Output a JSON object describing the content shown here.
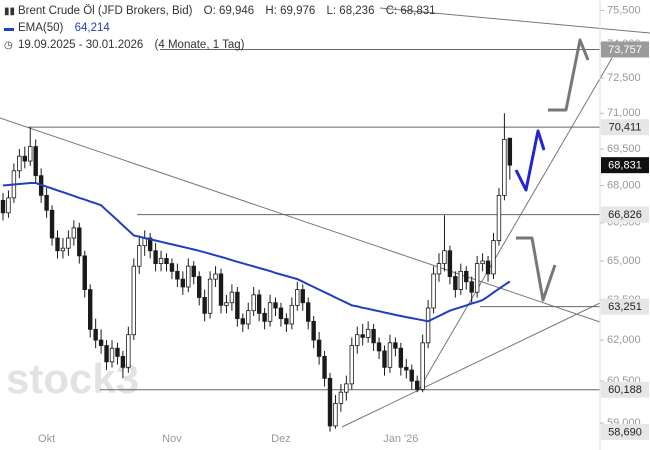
{
  "chart_data": {
    "type": "candlestick",
    "title": "Brent Crude Öl (JFD Brokers, Bid)",
    "quote": [
      {
        "name": "O:",
        "text": "69,946"
      },
      {
        "name": "H:",
        "text": "69,976"
      },
      {
        "name": "L:",
        "text": "68,236"
      },
      {
        "name": "C:",
        "text": "68,831"
      }
    ],
    "date_range": "19.09.2025 - 30.01.2026",
    "period": "(4 Monate, 1 Tag)",
    "watermark": "stock3",
    "log_scale": true,
    "up_color": "#ffffff",
    "down_color": "#1a1a1a",
    "ylim": [
      58.06,
      75.97
    ],
    "yticks": [
      {
        "value": 75.5,
        "label": "75,500"
      },
      {
        "value": 74.0,
        "label": "74,000"
      },
      {
        "value": 72.5,
        "label": "72,500"
      },
      {
        "value": 71.0,
        "label": "71,000"
      },
      {
        "value": 69.5,
        "label": "69,500"
      },
      {
        "value": 68.0,
        "label": "68,000"
      },
      {
        "value": 66.5,
        "label": "66,500"
      },
      {
        "value": 65.0,
        "label": "65,000"
      },
      {
        "value": 63.5,
        "label": "63,500"
      },
      {
        "value": 62.0,
        "label": "62,000"
      },
      {
        "value": 60.5,
        "label": "60,500"
      },
      {
        "value": 59.0,
        "label": "59,000"
      }
    ],
    "levels": [
      {
        "value": 73.757,
        "label": "73,757",
        "bg": "#9a9a9a",
        "fg": "#ffffff"
      },
      {
        "value": 70.411,
        "label": "70,411",
        "bg": "#e6e6e6",
        "fg": "#222222"
      },
      {
        "value": 68.831,
        "label": "68,831",
        "bg": "#111111",
        "fg": "#ffffff"
      },
      {
        "value": 66.826,
        "label": "66,826",
        "bg": "#e6e6e6",
        "fg": "#222222"
      },
      {
        "value": 63.251,
        "label": "63,251",
        "bg": "#e6e6e6",
        "fg": "#222222"
      },
      {
        "value": 60.188,
        "label": "60,188",
        "bg": "#e6e6e6",
        "fg": "#222222"
      },
      {
        "value": 58.69,
        "label": "58,690",
        "bg": "#e6e6e6",
        "fg": "#222222"
      }
    ],
    "categories": [
      null,
      null,
      null,
      null,
      null,
      null,
      null,
      null,
      "Okt",
      null,
      null,
      null,
      null,
      null,
      null,
      null,
      null,
      null,
      null,
      null,
      null,
      null,
      null,
      null,
      null,
      null,
      null,
      null,
      null,
      null,
      null,
      "Nov",
      null,
      null,
      null,
      null,
      null,
      null,
      null,
      null,
      null,
      null,
      null,
      null,
      null,
      null,
      null,
      null,
      null,
      null,
      null,
      "Dez",
      null,
      null,
      null,
      null,
      null,
      null,
      null,
      null,
      null,
      null,
      null,
      null,
      null,
      null,
      null,
      null,
      null,
      null,
      null,
      null,
      null,
      "Jan '26",
      null,
      null,
      null,
      null,
      null,
      null,
      null,
      null,
      null,
      null,
      null,
      null,
      null,
      null,
      null,
      null,
      null,
      null,
      null,
      null
    ],
    "open": [
      67.4,
      66.9,
      67.5,
      68.6,
      69.2,
      69.0,
      69.6,
      68.4,
      67.6,
      67.0,
      65.9,
      65.4,
      65.5,
      65.9,
      66.3,
      65.2,
      63.9,
      62.4,
      62.0,
      61.8,
      61.2,
      61.7,
      61.4,
      61.0,
      62.2,
      64.8,
      65.6,
      65.9,
      65.4,
      64.9,
      65.1,
      64.9,
      64.6,
      64.3,
      64.0,
      64.8,
      64.4,
      63.6,
      63.0,
      64.3,
      64.5,
      63.3,
      63.4,
      63.8,
      62.8,
      62.6,
      63.1,
      63.7,
      63.0,
      62.7,
      63.4,
      63.2,
      62.8,
      62.6,
      63.3,
      63.9,
      63.4,
      62.7,
      62.0,
      61.4,
      60.6,
      58.9,
      59.7,
      60.1,
      60.4,
      61.8,
      62.2,
      62.1,
      62.4,
      61.9,
      61.6,
      61.0,
      61.9,
      61.7,
      61.0,
      60.9,
      60.5,
      60.2,
      61.9,
      63.2,
      64.5,
      64.9,
      65.4,
      64.4,
      63.9,
      64.6,
      64.2,
      63.8,
      64.9,
      65.0,
      64.5,
      65.8,
      67.6,
      69.946
    ],
    "high": [
      67.7,
      67.8,
      68.9,
      69.5,
      69.6,
      70.4,
      69.9,
      68.7,
      67.9,
      67.2,
      66.2,
      65.9,
      66.2,
      66.6,
      66.5,
      65.4,
      64.1,
      62.8,
      62.4,
      62.0,
      62.0,
      61.9,
      61.6,
      62.5,
      65.1,
      66.0,
      66.2,
      66.1,
      65.7,
      65.4,
      65.3,
      65.1,
      64.9,
      64.6,
      65.1,
      65.0,
      64.6,
      63.9,
      64.6,
      64.8,
      64.7,
      63.7,
      64.1,
      64.0,
      63.0,
      63.4,
      64.0,
      63.9,
      63.2,
      63.7,
      63.6,
      63.4,
      63.0,
      63.6,
      64.2,
      64.1,
      63.6,
      62.9,
      62.3,
      61.6,
      60.8,
      60.0,
      60.4,
      60.7,
      62.1,
      62.5,
      62.6,
      62.7,
      62.6,
      62.1,
      61.8,
      62.2,
      62.1,
      61.9,
      61.3,
      61.1,
      60.7,
      62.2,
      63.5,
      64.8,
      65.3,
      66.8,
      65.6,
      64.6,
      64.9,
      64.8,
      64.4,
      65.2,
      65.3,
      65.2,
      66.1,
      67.9,
      71.0,
      69.976
    ],
    "low": [
      66.6,
      66.7,
      67.3,
      68.3,
      68.7,
      68.8,
      68.1,
      67.3,
      66.7,
      65.6,
      65.1,
      65.1,
      65.2,
      65.6,
      64.9,
      63.6,
      62.1,
      61.7,
      61.5,
      60.9,
      61.0,
      61.1,
      60.6,
      60.8,
      62.0,
      64.5,
      65.2,
      65.1,
      64.6,
      64.6,
      64.6,
      64.3,
      64.0,
      63.7,
      63.8,
      64.1,
      63.3,
      62.7,
      62.8,
      64.0,
      63.0,
      63.0,
      63.1,
      62.5,
      62.3,
      62.4,
      62.9,
      62.7,
      62.4,
      62.5,
      62.9,
      62.5,
      62.3,
      62.4,
      63.1,
      63.1,
      62.4,
      61.7,
      61.1,
      60.3,
      58.7,
      58.8,
      59.4,
      59.8,
      60.2,
      61.5,
      61.8,
      61.9,
      61.6,
      61.3,
      60.7,
      60.8,
      61.4,
      60.7,
      60.6,
      60.2,
      60.1,
      60.1,
      61.7,
      63.0,
      64.2,
      64.6,
      64.1,
      63.6,
      63.7,
      63.9,
      63.4,
      63.6,
      64.6,
      64.2,
      64.3,
      65.6,
      67.4,
      68.236
    ],
    "close": [
      66.9,
      67.5,
      68.6,
      69.2,
      69.0,
      69.6,
      68.4,
      67.6,
      67.0,
      65.9,
      65.4,
      65.5,
      65.9,
      66.3,
      65.2,
      63.9,
      62.4,
      62.0,
      61.8,
      61.2,
      61.7,
      61.4,
      61.0,
      62.2,
      64.8,
      65.6,
      65.9,
      65.4,
      64.9,
      65.1,
      64.9,
      64.6,
      64.3,
      64.0,
      64.8,
      64.4,
      63.6,
      63.0,
      64.3,
      64.5,
      63.3,
      63.4,
      63.8,
      62.8,
      62.6,
      63.1,
      63.7,
      63.0,
      62.7,
      63.4,
      63.2,
      62.8,
      62.6,
      63.3,
      63.9,
      63.4,
      62.7,
      62.0,
      61.4,
      60.6,
      58.9,
      59.7,
      60.1,
      60.4,
      61.8,
      62.2,
      62.1,
      62.4,
      61.9,
      61.6,
      61.0,
      61.9,
      61.7,
      61.0,
      60.9,
      60.5,
      60.2,
      61.9,
      63.2,
      64.5,
      64.9,
      65.4,
      64.4,
      63.9,
      64.6,
      64.2,
      63.8,
      64.9,
      65.0,
      64.5,
      65.8,
      67.6,
      69.9,
      68.831
    ],
    "ema": {
      "name": "EMA(50)",
      "color": "#1f3fbf",
      "value_label": "64,214",
      "values": [
        68.0,
        68.02,
        68.04,
        68.06,
        68.08,
        68.1,
        68.1,
        68.03,
        67.95,
        67.88,
        67.8,
        67.73,
        67.65,
        67.58,
        67.5,
        67.43,
        67.35,
        67.28,
        67.2,
        67.0,
        66.8,
        66.6,
        66.4,
        66.2,
        66.0,
        65.95,
        65.9,
        65.85,
        65.8,
        65.75,
        65.7,
        65.65,
        65.6,
        65.55,
        65.5,
        65.45,
        65.4,
        65.34,
        65.28,
        65.22,
        65.16,
        65.1,
        65.03,
        64.97,
        64.91,
        64.85,
        64.79,
        64.73,
        64.67,
        64.61,
        64.54,
        64.48,
        64.42,
        64.36,
        64.3,
        64.2,
        64.1,
        64.0,
        63.9,
        63.8,
        63.7,
        63.6,
        63.5,
        63.4,
        63.3,
        63.26,
        63.21,
        63.17,
        63.12,
        63.08,
        63.03,
        62.99,
        62.94,
        62.9,
        62.86,
        62.82,
        62.78,
        62.74,
        62.7,
        62.8,
        62.9,
        63.0,
        63.1,
        63.17,
        63.23,
        63.3,
        63.37,
        63.43,
        63.5,
        63.64,
        63.79,
        63.93,
        64.07,
        64.214
      ]
    }
  }
}
